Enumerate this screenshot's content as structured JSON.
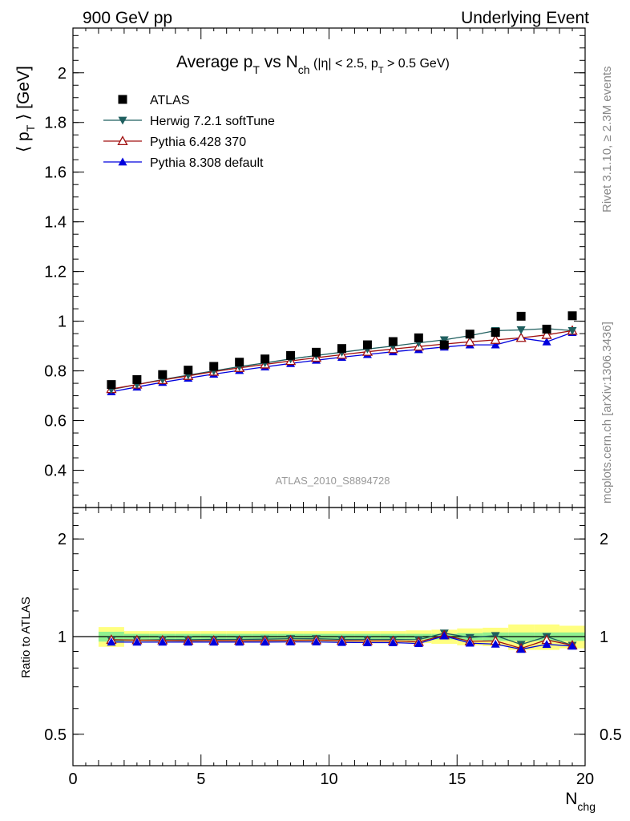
{
  "header": {
    "left": "900 GeV pp",
    "right": "Underlying Event"
  },
  "side_labels": {
    "rivet": "Rivet 3.1.10, ≥ 2.3M events",
    "mcplots": "mcplots.cern.ch [arXiv:1306.3436]"
  },
  "watermark": "ATLAS_2010_S8894728",
  "chart_data": [
    {
      "type": "scatter",
      "panel": "main",
      "title": "Average pT vs Nch (|η| < 2.5, pT > 0.5 GeV)",
      "title_parts": {
        "a": "Average p",
        "a_sub": "T",
        "b": " vs N",
        "b_sub": "ch",
        "c": " (|η| < 2.5, p",
        "c_sub": "T",
        "d": " > 0.5 GeV)"
      },
      "ylabel_parts": {
        "a": "⟨ p",
        "sub": "T",
        "b": " ⟩ [GeV]"
      },
      "xlabel_parts": {
        "a": "N",
        "sub": "chg"
      },
      "xlim": [
        0,
        20
      ],
      "ylim": [
        0.25,
        2.18
      ],
      "yticks": [
        "0.4",
        "0.6",
        "0.8",
        "1",
        "1.2",
        "1.4",
        "1.6",
        "1.8",
        "2"
      ],
      "ytick_values": [
        0.4,
        0.6,
        0.8,
        1.0,
        1.2,
        1.4,
        1.6,
        1.8,
        2.0
      ],
      "legend_position": "top-left",
      "x": [
        1.5,
        2.5,
        3.5,
        4.5,
        5.5,
        6.5,
        7.5,
        8.5,
        9.5,
        10.5,
        11.5,
        12.5,
        13.5,
        14.5,
        15.5,
        16.5,
        17.5,
        18.5,
        19.5
      ],
      "series": [
        {
          "name": "ATLAS",
          "color": "#000000",
          "marker": "square",
          "line": false,
          "values": [
            0.745,
            0.765,
            0.785,
            0.803,
            0.818,
            0.835,
            0.848,
            0.862,
            0.875,
            0.89,
            0.905,
            0.918,
            0.933,
            0.905,
            0.948,
            0.955,
            1.02,
            0.968,
            1.022
          ]
        },
        {
          "name": "Herwig 7.2.1 softTune",
          "color": "#1f5f5f",
          "marker": "triangle-down",
          "line": true,
          "values": [
            0.725,
            0.745,
            0.765,
            0.783,
            0.8,
            0.817,
            0.832,
            0.848,
            0.862,
            0.875,
            0.888,
            0.9,
            0.913,
            0.925,
            0.942,
            0.962,
            0.965,
            0.97,
            0.962
          ]
        },
        {
          "name": "Pythia 6.428 370",
          "color": "#a01010",
          "marker": "triangle-up-open",
          "line": true,
          "values": [
            0.727,
            0.745,
            0.763,
            0.78,
            0.797,
            0.812,
            0.826,
            0.84,
            0.853,
            0.865,
            0.877,
            0.888,
            0.898,
            0.908,
            0.917,
            0.925,
            0.933,
            0.945,
            0.962
          ]
        },
        {
          "name": "Pythia 8.308 default",
          "color": "#0000dd",
          "marker": "triangle-up",
          "line": true,
          "values": [
            0.716,
            0.735,
            0.754,
            0.771,
            0.787,
            0.802,
            0.816,
            0.83,
            0.843,
            0.855,
            0.866,
            0.877,
            0.886,
            0.896,
            0.905,
            0.905,
            0.932,
            0.917,
            0.955
          ]
        }
      ]
    },
    {
      "type": "scatter",
      "panel": "ratio",
      "ylabel": "Ratio to ATLAS",
      "xlim": [
        0,
        20
      ],
      "ylim": [
        0.4,
        2.5
      ],
      "yscale": "log",
      "yticks": [
        "0.5",
        "1",
        "2"
      ],
      "ytick_values": [
        0.5,
        1,
        2
      ],
      "xticks": [
        "0",
        "5",
        "10",
        "15",
        "20"
      ],
      "xtick_values": [
        0,
        5,
        10,
        15,
        20
      ],
      "band_edges": [
        1,
        2,
        3,
        4,
        5,
        6,
        7,
        8,
        9,
        10,
        11,
        12,
        13,
        14,
        15,
        16,
        17,
        18,
        19,
        20
      ],
      "band_stat": [
        0.035,
        0.02,
        0.02,
        0.02,
        0.02,
        0.02,
        0.02,
        0.02,
        0.02,
        0.02,
        0.02,
        0.02,
        0.02,
        0.02,
        0.025,
        0.03,
        0.03,
        0.03,
        0.03
      ],
      "band_total": [
        0.07,
        0.04,
        0.04,
        0.04,
        0.04,
        0.04,
        0.04,
        0.04,
        0.04,
        0.04,
        0.04,
        0.04,
        0.045,
        0.05,
        0.06,
        0.065,
        0.09,
        0.09,
        0.08
      ],
      "band_stat_color": "#90f090",
      "band_total_color": "#ffff80",
      "x": [
        1.5,
        2.5,
        3.5,
        4.5,
        5.5,
        6.5,
        7.5,
        8.5,
        9.5,
        10.5,
        11.5,
        12.5,
        13.5,
        14.5,
        15.5,
        16.5,
        17.5,
        18.5,
        19.5
      ],
      "series": [
        {
          "name": "Herwig 7.2.1 softTune",
          "color": "#1f5f5f",
          "marker": "triangle-down",
          "line": true,
          "values": [
            0.975,
            0.975,
            0.978,
            0.978,
            0.98,
            0.98,
            0.982,
            0.985,
            0.985,
            0.98,
            0.98,
            0.98,
            0.978,
            1.025,
            0.993,
            1.007,
            0.946,
            1.0,
            0.94
          ]
        },
        {
          "name": "Pythia 6.428 370",
          "color": "#a01010",
          "marker": "triangle-up-open",
          "line": true,
          "values": [
            0.978,
            0.975,
            0.974,
            0.972,
            0.973,
            0.972,
            0.973,
            0.974,
            0.975,
            0.972,
            0.97,
            0.97,
            0.963,
            1.01,
            0.967,
            0.97,
            0.92,
            0.977,
            0.94
          ]
        },
        {
          "name": "Pythia 8.308 default",
          "color": "#0000dd",
          "marker": "triangle-up",
          "line": true,
          "values": [
            0.962,
            0.962,
            0.962,
            0.962,
            0.962,
            0.962,
            0.962,
            0.963,
            0.963,
            0.96,
            0.958,
            0.958,
            0.952,
            1.005,
            0.955,
            0.948,
            0.914,
            0.947,
            0.935
          ]
        }
      ]
    }
  ]
}
